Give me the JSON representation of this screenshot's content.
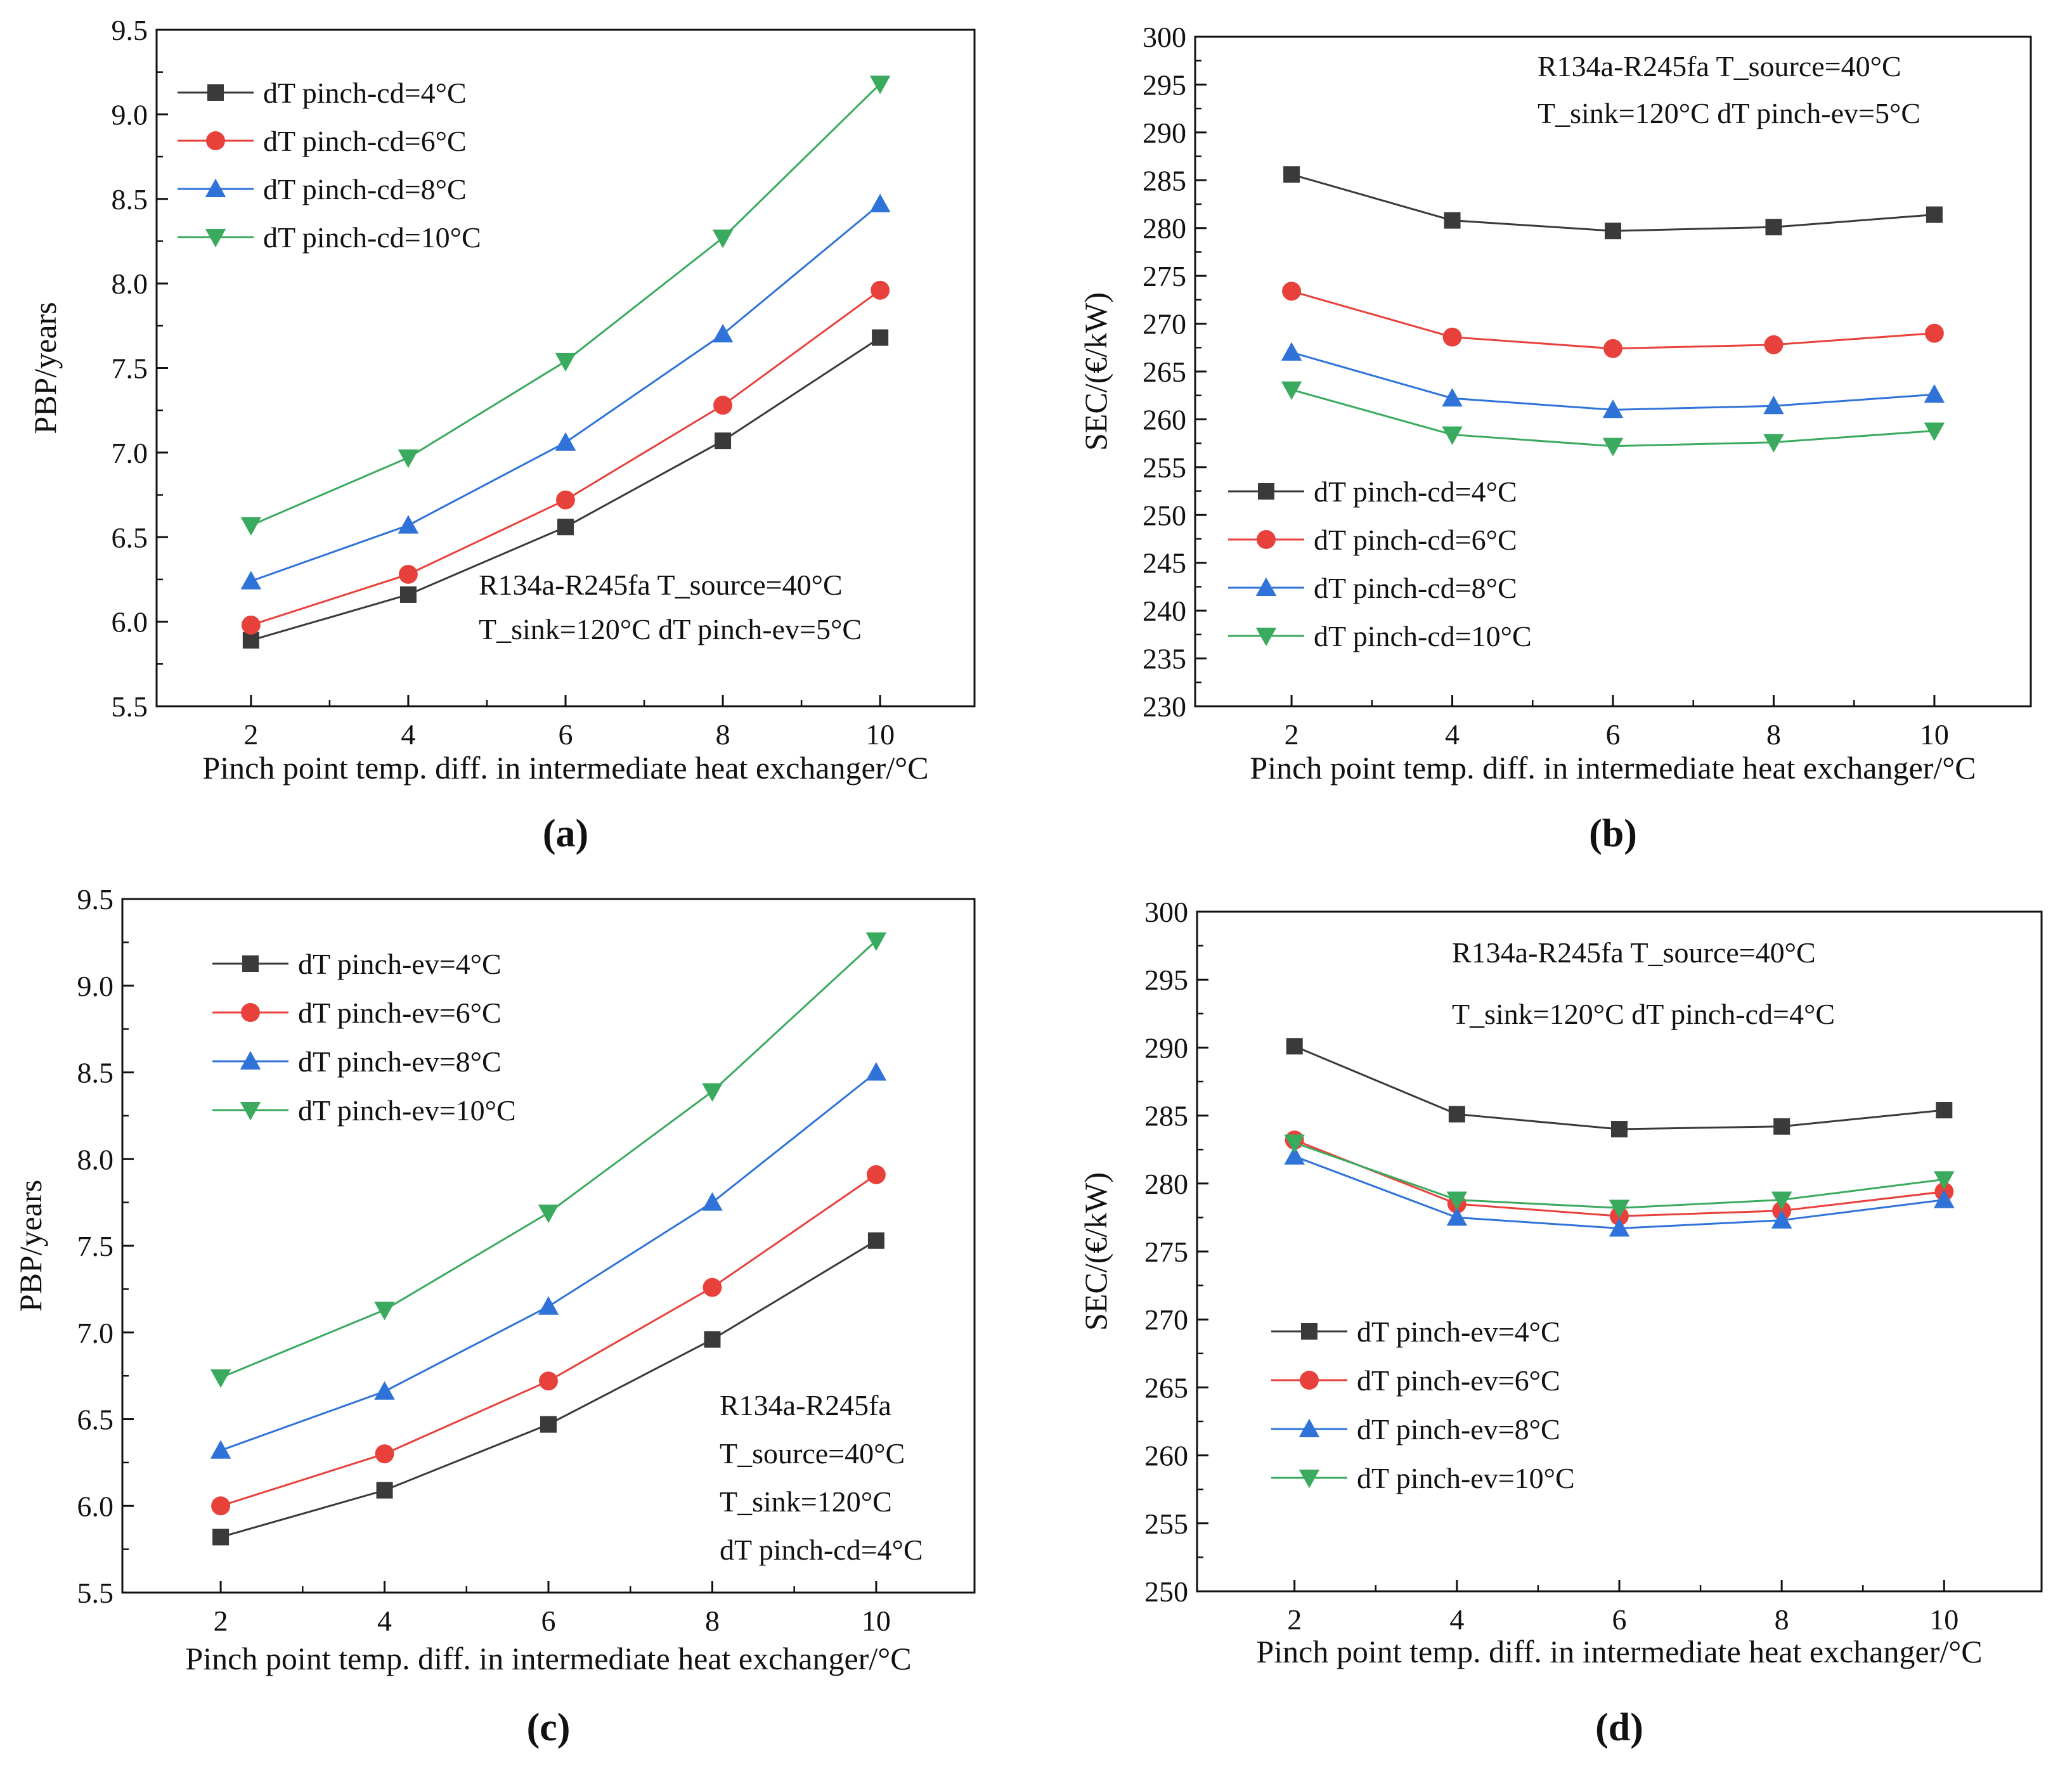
{
  "colors": {
    "black": "#3a3a3a",
    "red": "#e8413c",
    "blue": "#2f73d8",
    "green": "#3aaa5e",
    "axis": "#111111"
  },
  "chart_data": [
    {
      "panel_label": "(a)",
      "type": "line",
      "xlabel": "Pinch point temp. diff. in intermediate heat exchanger/°C",
      "ylabel": "PBP/years",
      "xlim": [
        0.8,
        11.2
      ],
      "ylim": [
        5.5,
        9.5
      ],
      "xticks": [
        "2",
        "4",
        "6",
        "8",
        "10"
      ],
      "yticks": [
        "5.5",
        "6.0",
        "6.5",
        "7.0",
        "7.5",
        "8.0",
        "8.5",
        "9.0",
        "9.5"
      ],
      "legend_position": "top-left",
      "annotation_position": "bottom-right",
      "annotation": [
        "R134a-R245fa   T_source=40°C",
        "T_sink=120°C   dT pinch-ev=5°C"
      ],
      "x": [
        2,
        4,
        6,
        8,
        10
      ],
      "series": [
        {
          "name": "dT pinch-cd=4°C",
          "marker": "square",
          "color": "#3a3a3a",
          "values": [
            5.89,
            6.16,
            6.56,
            7.07,
            7.68
          ]
        },
        {
          "name": " dT pinch-cd=6°C",
          "marker": "circle",
          "color": "#e8413c",
          "values": [
            5.98,
            6.28,
            6.72,
            7.28,
            7.96
          ]
        },
        {
          "name": "dT pinch-cd=8°C",
          "marker": "triangle-up",
          "color": "#2f73d8",
          "values": [
            6.24,
            6.57,
            7.06,
            7.7,
            8.47
          ]
        },
        {
          "name": "dT pinch-cd=10°C",
          "marker": "triangle-down",
          "color": "#3aaa5e",
          "values": [
            6.57,
            6.97,
            7.54,
            8.27,
            9.18
          ]
        }
      ]
    },
    {
      "panel_label": "(b)",
      "type": "line",
      "xlabel": "Pinch point temp. diff. in intermediate heat exchanger/°C",
      "ylabel": "SEC/(€/kW)",
      "xlim": [
        0.8,
        11.2
      ],
      "ylim": [
        230,
        300
      ],
      "xticks": [
        "2",
        "4",
        "6",
        "8",
        "10"
      ],
      "yticks": [
        "230",
        "235",
        "240",
        "245",
        "250",
        "255",
        "260",
        "265",
        "270",
        "275",
        "280",
        "285",
        "290",
        "295",
        "300"
      ],
      "legend_position": "bottom-left",
      "annotation_position": "top-right",
      "annotation": [
        "R134a-R245fa   T_source=40°C",
        "T_sink=120°C   dT pinch-ev=5°C"
      ],
      "x": [
        2,
        4,
        6,
        8,
        10
      ],
      "series": [
        {
          "name": "dT pinch-cd=4°C",
          "marker": "square",
          "color": "#3a3a3a",
          "values": [
            285.6,
            280.8,
            279.7,
            280.1,
            281.4
          ]
        },
        {
          "name": "dT pinch-cd=6°C",
          "marker": "circle",
          "color": "#e8413c",
          "values": [
            273.4,
            268.6,
            267.4,
            267.8,
            269.0
          ]
        },
        {
          "name": "dT pinch-cd=8°C",
          "marker": "triangle-up",
          "color": "#2f73d8",
          "values": [
            267.0,
            262.2,
            261.0,
            261.4,
            262.6
          ]
        },
        {
          "name": "dT pinch-cd=10°C",
          "marker": "triangle-down",
          "color": "#3aaa5e",
          "values": [
            263.1,
            258.4,
            257.2,
            257.6,
            258.8
          ]
        }
      ]
    },
    {
      "panel_label": "(c)",
      "type": "line",
      "xlabel": "Pinch point temp. diff. in intermediate heat exchanger/°C",
      "ylabel": "PBP/years",
      "xlim": [
        0.8,
        11.2
      ],
      "ylim": [
        5.5,
        9.5
      ],
      "xticks": [
        "2",
        "4",
        "6",
        "8",
        "10"
      ],
      "yticks": [
        "5.5",
        "6.0",
        "6.5",
        "7.0",
        "7.5",
        "8.0",
        "8.5",
        "9.0",
        "9.5"
      ],
      "legend_position": "top-left",
      "annotation_position": "bottom-right",
      "annotation": [
        "R134a-R245fa",
        "T_source=40°C",
        "T_sink=120°C",
        "dT pinch-cd=4°C"
      ],
      "x": [
        2,
        4,
        6,
        8,
        10
      ],
      "series": [
        {
          "name": "dT pinch-ev=4°C",
          "marker": "square",
          "color": "#3a3a3a",
          "values": [
            5.82,
            6.09,
            6.47,
            6.96,
            7.53
          ]
        },
        {
          "name": "dT pinch-ev=6°C",
          "marker": "circle",
          "color": "#e8413c",
          "values": [
            6.0,
            6.3,
            6.72,
            7.26,
            7.91
          ]
        },
        {
          "name": "dT pinch-ev=8°C",
          "marker": "triangle-up",
          "color": "#2f73d8",
          "values": [
            6.32,
            6.66,
            7.15,
            7.75,
            8.5
          ]
        },
        {
          "name": "dT pinch-ev=10°C",
          "marker": "triangle-down",
          "color": "#3aaa5e",
          "values": [
            6.74,
            7.13,
            7.69,
            8.39,
            9.26
          ]
        }
      ]
    },
    {
      "panel_label": "(d)",
      "type": "line",
      "xlabel": "Pinch point temp. diff. in intermediate heat exchanger/°C",
      "ylabel": "SEC/(€/kW)",
      "xlim": [
        0.8,
        11.2
      ],
      "ylim": [
        250,
        300
      ],
      "xticks": [
        "2",
        "4",
        "6",
        "8",
        "10"
      ],
      "yticks": [
        "250",
        "255",
        "260",
        "265",
        "270",
        "275",
        "280",
        "285",
        "290",
        "295",
        "300"
      ],
      "legend_position": "bottom-left",
      "annotation_position": "top-right",
      "annotation": [
        "R134a-R245fa   T_source=40°C",
        "T_sink=120°C   dT pinch-cd=4°C"
      ],
      "x": [
        2,
        4,
        6,
        8,
        10
      ],
      "series": [
        {
          "name": "dT pinch-ev=4°C",
          "marker": "square",
          "color": "#3a3a3a",
          "values": [
            290.1,
            285.1,
            284.0,
            284.2,
            285.4
          ]
        },
        {
          "name": "dT pinch-ev=6°C",
          "marker": "circle",
          "color": "#e8413c",
          "values": [
            283.2,
            278.5,
            277.6,
            278.0,
            279.4
          ]
        },
        {
          "name": "dT pinch-ev=8°C",
          "marker": "triangle-up",
          "color": "#2f73d8",
          "values": [
            282.0,
            277.5,
            276.7,
            277.3,
            278.8
          ]
        },
        {
          "name": "dT pinch-ev=10°C",
          "marker": "triangle-down",
          "color": "#3aaa5e",
          "values": [
            283.0,
            278.8,
            278.2,
            278.8,
            280.3
          ]
        }
      ]
    }
  ]
}
